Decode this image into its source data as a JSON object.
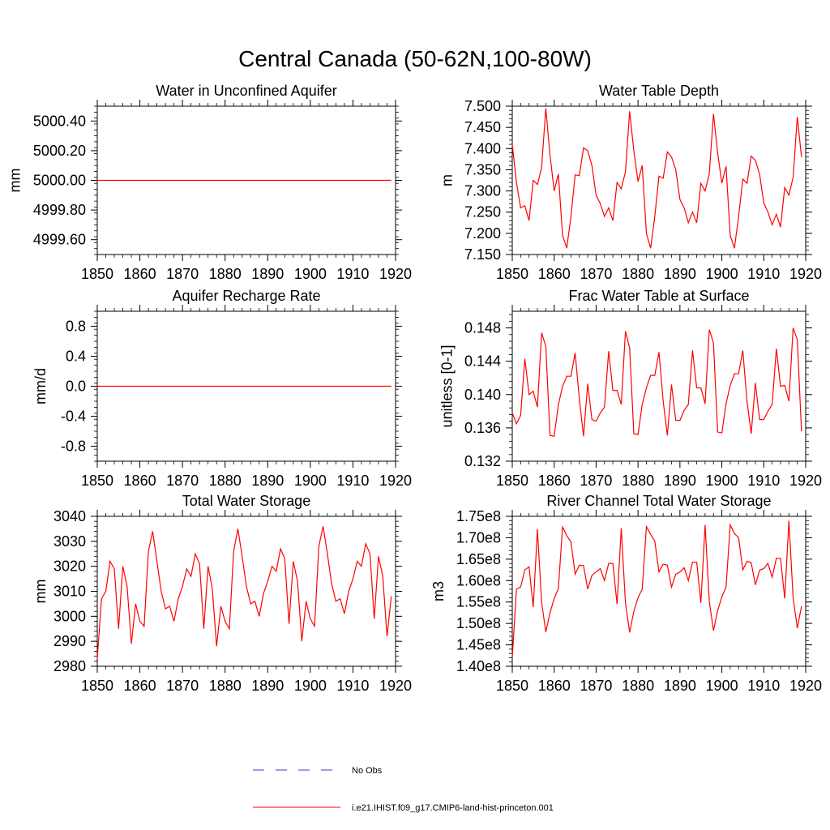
{
  "figure": {
    "title": "Central Canada (50-62N,100-80W)"
  },
  "legend": {
    "placement": "bottom-center",
    "entries": [
      {
        "label": "No Obs",
        "color": "#3a3ad6",
        "style": "dashed"
      },
      {
        "label": "i.e21.IHIST.f09_g17.CMIP6-land-hist-princeton.001",
        "color": "#ff0000",
        "style": "solid"
      }
    ]
  },
  "chart_data": [
    {
      "type": "line",
      "title": "Water in Unconfined Aquifer",
      "ylabel": "mm",
      "xlim": [
        1850,
        1920
      ],
      "ylim": [
        4999.5,
        5000.5
      ],
      "xticks": [
        1850,
        1860,
        1870,
        1880,
        1890,
        1900,
        1910,
        1920
      ],
      "yticks": [
        4999.6,
        4999.8,
        5000.0,
        5000.2,
        5000.4
      ],
      "ytick_labels": [
        "4999.60",
        "4999.80",
        "5000.00",
        "5000.20",
        "5000.40"
      ],
      "series": [
        {
          "color": "#ff0000",
          "x_start": 1850,
          "x_step": 1,
          "values": [
            5000,
            5000,
            5000,
            5000,
            5000,
            5000,
            5000,
            5000,
            5000,
            5000,
            5000,
            5000,
            5000,
            5000,
            5000,
            5000,
            5000,
            5000,
            5000,
            5000,
            5000,
            5000,
            5000,
            5000,
            5000,
            5000,
            5000,
            5000,
            5000,
            5000,
            5000,
            5000,
            5000,
            5000,
            5000,
            5000,
            5000,
            5000,
            5000,
            5000,
            5000,
            5000,
            5000,
            5000,
            5000,
            5000,
            5000,
            5000,
            5000,
            5000,
            5000,
            5000,
            5000,
            5000,
            5000,
            5000,
            5000,
            5000,
            5000,
            5000,
            5000,
            5000,
            5000,
            5000,
            5000,
            5000,
            5000,
            5000,
            5000,
            5000
          ]
        }
      ]
    },
    {
      "type": "line",
      "title": "Water Table Depth",
      "ylabel": "m",
      "xlim": [
        1850,
        1920
      ],
      "ylim": [
        7.15,
        7.5
      ],
      "xticks": [
        1850,
        1860,
        1870,
        1880,
        1890,
        1900,
        1910,
        1920
      ],
      "yticks": [
        7.15,
        7.2,
        7.25,
        7.3,
        7.35,
        7.4,
        7.45,
        7.5
      ],
      "ytick_labels": [
        "7.150",
        "7.200",
        "7.250",
        "7.300",
        "7.350",
        "7.400",
        "7.450",
        "7.500"
      ],
      "series": [
        {
          "color": "#ff0000",
          "x_start": 1850,
          "x_step": 1,
          "values": [
            7.41,
            7.32,
            7.26,
            7.265,
            7.23,
            7.325,
            7.315,
            7.355,
            7.495,
            7.385,
            7.3,
            7.34,
            7.195,
            7.165,
            7.24,
            7.338,
            7.336,
            7.402,
            7.395,
            7.36,
            7.29,
            7.27,
            7.24,
            7.26,
            7.23,
            7.32,
            7.305,
            7.345,
            7.488,
            7.395,
            7.322,
            7.36,
            7.2,
            7.165,
            7.24,
            7.335,
            7.33,
            7.392,
            7.38,
            7.35,
            7.28,
            7.26,
            7.225,
            7.25,
            7.225,
            7.318,
            7.3,
            7.34,
            7.482,
            7.39,
            7.318,
            7.358,
            7.195,
            7.165,
            7.24,
            7.328,
            7.318,
            7.382,
            7.372,
            7.34,
            7.272,
            7.25,
            7.22,
            7.245,
            7.215,
            7.308,
            7.29,
            7.332,
            7.475,
            7.38
          ]
        }
      ]
    },
    {
      "type": "line",
      "title": "Aquifer Recharge Rate",
      "ylabel": "mm/d",
      "xlim": [
        1850,
        1920
      ],
      "ylim": [
        -1.0,
        1.0
      ],
      "xticks": [
        1850,
        1860,
        1870,
        1880,
        1890,
        1900,
        1910,
        1920
      ],
      "yticks": [
        -0.8,
        -0.4,
        0.0,
        0.4,
        0.8
      ],
      "ytick_labels": [
        "-0.8",
        "-0.4",
        "0.0",
        "0.4",
        "0.8"
      ],
      "series": [
        {
          "color": "#ff0000",
          "x_start": 1850,
          "x_step": 1,
          "values": [
            0,
            0,
            0,
            0,
            0,
            0,
            0,
            0,
            0,
            0,
            0,
            0,
            0,
            0,
            0,
            0,
            0,
            0,
            0,
            0,
            0,
            0,
            0,
            0,
            0,
            0,
            0,
            0,
            0,
            0,
            0,
            0,
            0,
            0,
            0,
            0,
            0,
            0,
            0,
            0,
            0,
            0,
            0,
            0,
            0,
            0,
            0,
            0,
            0,
            0,
            0,
            0,
            0,
            0,
            0,
            0,
            0,
            0,
            0,
            0,
            0,
            0,
            0,
            0,
            0,
            0,
            0,
            0,
            0,
            0
          ]
        }
      ]
    },
    {
      "type": "line",
      "title": "Frac Water Table at Surface",
      "ylabel": "unitless [0-1]",
      "xlim": [
        1850,
        1920
      ],
      "ylim": [
        0.132,
        0.15
      ],
      "xticks": [
        1850,
        1860,
        1870,
        1880,
        1890,
        1900,
        1910,
        1920
      ],
      "yticks": [
        0.132,
        0.136,
        0.14,
        0.144,
        0.148
      ],
      "ytick_labels": [
        "0.132",
        "0.136",
        "0.140",
        "0.144",
        "0.148"
      ],
      "series": [
        {
          "color": "#ff0000",
          "x_start": 1850,
          "x_step": 1,
          "values": [
            0.1378,
            0.1365,
            0.1375,
            0.1443,
            0.14,
            0.1404,
            0.1385,
            0.1474,
            0.1458,
            0.1351,
            0.135,
            0.1388,
            0.141,
            0.1422,
            0.1422,
            0.145,
            0.1395,
            0.135,
            0.1413,
            0.137,
            0.1368,
            0.1378,
            0.1385,
            0.1452,
            0.1405,
            0.1405,
            0.1388,
            0.1476,
            0.1456,
            0.1353,
            0.1352,
            0.1388,
            0.1408,
            0.1423,
            0.1423,
            0.1451,
            0.1392,
            0.1351,
            0.1412,
            0.1369,
            0.1369,
            0.1381,
            0.1388,
            0.1453,
            0.1408,
            0.1408,
            0.1389,
            0.1478,
            0.1462,
            0.1355,
            0.1354,
            0.1389,
            0.1411,
            0.1425,
            0.1425,
            0.1453,
            0.1392,
            0.1353,
            0.1414,
            0.137,
            0.137,
            0.138,
            0.1388,
            0.1455,
            0.141,
            0.1411,
            0.1392,
            0.148,
            0.1466,
            0.1356
          ]
        }
      ]
    },
    {
      "type": "line",
      "title": "Total Water Storage",
      "ylabel": "mm",
      "xlim": [
        1850,
        1920
      ],
      "ylim": [
        2980,
        3040
      ],
      "xticks": [
        1850,
        1860,
        1870,
        1880,
        1890,
        1900,
        1910,
        1920
      ],
      "yticks": [
        2980,
        2990,
        3000,
        3010,
        3020,
        3030,
        3040
      ],
      "ytick_labels": [
        "2980",
        "2990",
        "3000",
        "3010",
        "3020",
        "3030",
        "3040"
      ],
      "series": [
        {
          "color": "#ff0000",
          "x_start": 1850,
          "x_step": 1,
          "values": [
            2983,
            3007,
            3010,
            3022,
            3019,
            2995,
            3020,
            3012,
            2989,
            3005,
            2998,
            2996,
            3026,
            3034,
            3022,
            3010,
            3003,
            3004,
            2998,
            3007,
            3012,
            3019,
            3016,
            3025,
            3021,
            2995,
            3020,
            3011,
            2988,
            3004,
            2998,
            2995,
            3026,
            3035,
            3024,
            3012,
            3005,
            3006,
            3000,
            3009,
            3014,
            3020,
            3018,
            3027,
            3023,
            2997,
            3022,
            3014,
            2990,
            3006,
            2999,
            2996,
            3028,
            3036,
            3025,
            3013,
            3006,
            3007,
            3001,
            3010,
            3015,
            3022,
            3020,
            3029,
            3025,
            2999,
            3024,
            3016,
            2992,
            3008
          ]
        }
      ]
    },
    {
      "type": "line",
      "title": "River Channel Total Water Storage",
      "ylabel": "m3",
      "xlim": [
        1850,
        1920
      ],
      "ylim": [
        140000000,
        175000000
      ],
      "xticks": [
        1850,
        1860,
        1870,
        1880,
        1890,
        1900,
        1910,
        1920
      ],
      "yticks": [
        140000000,
        145000000,
        150000000,
        155000000,
        160000000,
        165000000,
        170000000,
        175000000
      ],
      "ytick_labels": [
        "1.40e8",
        "1.45e8",
        "1.50e8",
        "1.55e8",
        "1.60e8",
        "1.65e8",
        "1.70e8",
        "1.75e8"
      ],
      "series": [
        {
          "color": "#ff0000",
          "x_start": 1850,
          "x_step": 1,
          "values": [
            142000000,
            158000000,
            158500000,
            162500000,
            163200000,
            153800000,
            172000000,
            155000000,
            148000000,
            152500000,
            155800000,
            158200000,
            172500000,
            170500000,
            169000000,
            161500000,
            163600000,
            163500000,
            158000000,
            161200000,
            162000000,
            162800000,
            160000000,
            164000000,
            164000000,
            154500000,
            172200000,
            154800000,
            147900000,
            152800000,
            156000000,
            158000000,
            172600000,
            170800000,
            169200000,
            162000000,
            163800000,
            163600000,
            158500000,
            161500000,
            162000000,
            163000000,
            160000000,
            164300000,
            164300000,
            154800000,
            173000000,
            155200000,
            148300000,
            153000000,
            156200000,
            158500000,
            173000000,
            171000000,
            170000000,
            162500000,
            164500000,
            164200000,
            159000000,
            162400000,
            162800000,
            164000000,
            160800000,
            165200000,
            165200000,
            155800000,
            174000000,
            156000000,
            148900000,
            154000000
          ]
        }
      ]
    }
  ]
}
